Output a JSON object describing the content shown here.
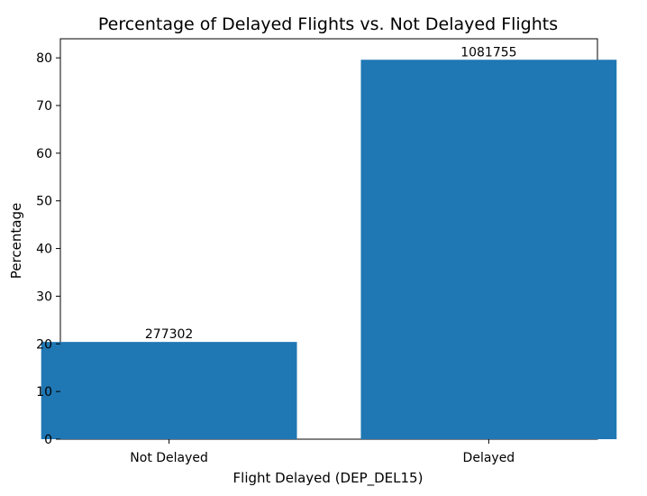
{
  "chart_data": {
    "type": "bar",
    "title": "Percentage of Delayed Flights vs. Not Delayed Flights",
    "xlabel": "Flight Delayed (DEP_DEL15)",
    "ylabel": "Percentage",
    "categories": [
      "Not Delayed",
      "Delayed"
    ],
    "values": [
      20.4,
      79.6
    ],
    "data_labels": [
      "277302",
      "1081755"
    ],
    "ylim": [
      0,
      84
    ],
    "yticks": [
      0,
      10,
      20,
      30,
      40,
      50,
      60,
      70,
      80
    ],
    "grid": false,
    "bar_color": "#1f77b4"
  }
}
